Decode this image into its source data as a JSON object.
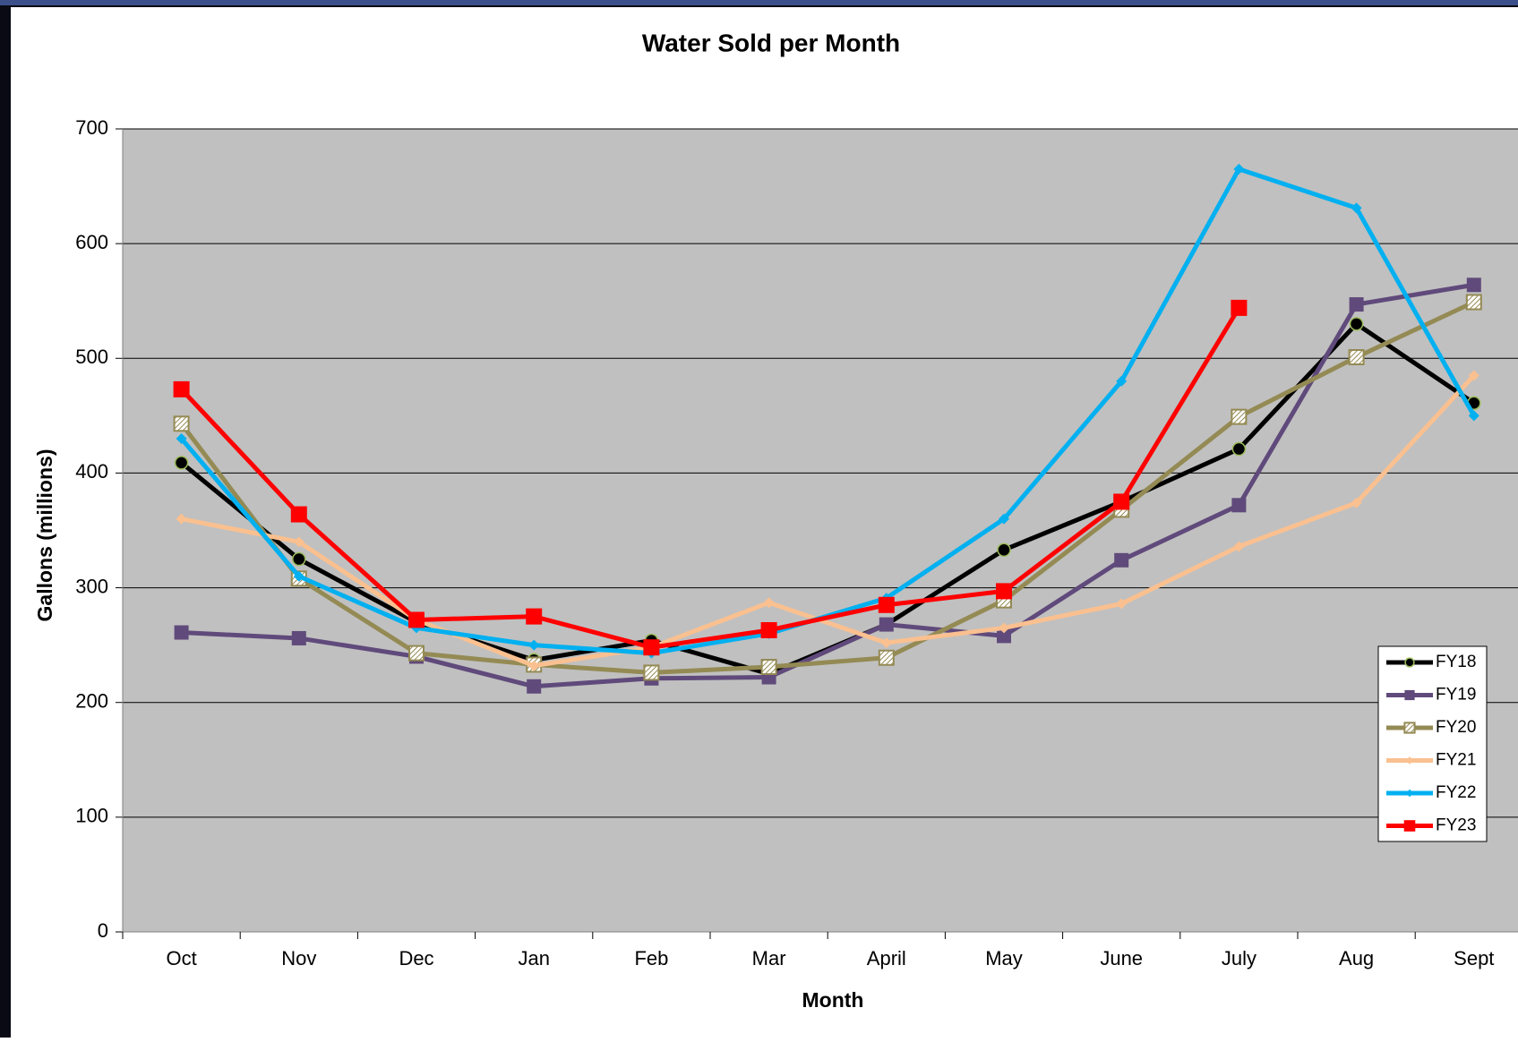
{
  "chart_data": {
    "type": "line",
    "title": "Water Sold per Month",
    "xlabel": "Month",
    "ylabel": "Gallons (millions)",
    "categories": [
      "Oct",
      "Nov",
      "Dec",
      "Jan",
      "Feb",
      "Mar",
      "April",
      "May",
      "June",
      "July",
      "Aug",
      "Sept"
    ],
    "ylim": [
      0,
      700
    ],
    "yticks": [
      0,
      100,
      200,
      300,
      400,
      500,
      600,
      700
    ],
    "grid": true,
    "legend": "lower right",
    "series": [
      {
        "name": "FY18",
        "color": "#000000",
        "marker": "circle",
        "values": [
          409,
          325,
          270,
          237,
          254,
          225,
          268,
          333,
          375,
          421,
          530,
          461
        ]
      },
      {
        "name": "FY19",
        "color": "#604a7b",
        "marker": "square",
        "values": [
          261,
          256,
          240,
          214,
          221,
          222,
          268,
          258,
          324,
          372,
          547,
          564
        ]
      },
      {
        "name": "FY20",
        "color": "#948a54",
        "marker": "hatched-square",
        "values": [
          443,
          308,
          243,
          233,
          226,
          231,
          239,
          289,
          368,
          449,
          501,
          549
        ]
      },
      {
        "name": "FY21",
        "color": "#fac090",
        "marker": "diamond",
        "values": [
          360,
          340,
          272,
          232,
          248,
          287,
          252,
          265,
          286,
          336,
          374,
          485
        ]
      },
      {
        "name": "FY22",
        "color": "#00b0f0",
        "marker": "diamond",
        "values": [
          430,
          310,
          265,
          250,
          243,
          260,
          291,
          360,
          480,
          665,
          631,
          450
        ]
      },
      {
        "name": "FY23",
        "color": "#ff0000",
        "marker": "big-square",
        "values": [
          473,
          364,
          272,
          275,
          248,
          263,
          285,
          297,
          375,
          544,
          null,
          null
        ]
      }
    ]
  }
}
